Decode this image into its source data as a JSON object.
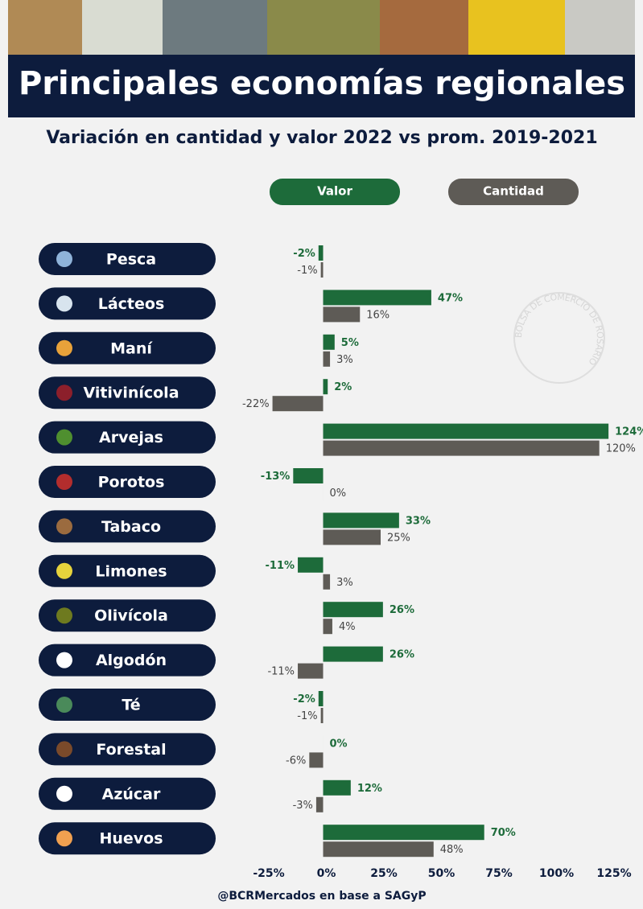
{
  "chart_data": {
    "type": "bar",
    "orientation": "horizontal",
    "title": "Principales economías regionales",
    "subtitle": "Variación en cantidad y valor 2022 vs prom. 2019-2021",
    "source": "@BCRMercados en base a SAGyP",
    "watermark": "BOLSA DE COMERCIO DE ROSARIO",
    "legend": "top",
    "categories": [
      "Pesca",
      "Lácteos",
      "Maní",
      "Vitivinícola",
      "Arvejas",
      "Porotos",
      "Tabaco",
      "Limones",
      "Olivícola",
      "Algodón",
      "Té",
      "Forestal",
      "Azúcar",
      "Huevos"
    ],
    "series": [
      {
        "name": "Valor",
        "color": "#1d6b3a",
        "values": [
          -2,
          47,
          5,
          2,
          124,
          -13,
          33,
          -11,
          26,
          26,
          -2,
          0,
          12,
          70
        ],
        "value_labels": [
          "-2%",
          "47%",
          "5%",
          "2%",
          "124%",
          "-13%",
          "33%",
          "-11%",
          "26%",
          "26%",
          "-2%",
          "0%",
          "12%",
          "70%"
        ]
      },
      {
        "name": "Cantidad",
        "color": "#5e5b56",
        "values": [
          -1,
          16,
          3,
          -22,
          120,
          0,
          25,
          3,
          4,
          -11,
          -1,
          -6,
          -3,
          48
        ],
        "value_labels": [
          "-1%",
          "16%",
          "3%",
          "-22%",
          "120%",
          "0%",
          "25%",
          "3%",
          "4%",
          "-11%",
          "-1%",
          "-6%",
          "-3%",
          "48%"
        ]
      }
    ],
    "xlim": [
      -25,
      125
    ],
    "xticks": [
      {
        "value": -25,
        "label": "-25%"
      },
      {
        "value": 0,
        "label": "0%"
      },
      {
        "value": 25,
        "label": "25%"
      },
      {
        "value": 50,
        "label": "50%"
      },
      {
        "value": 75,
        "label": "75%"
      },
      {
        "value": 100,
        "label": "100%"
      },
      {
        "value": 125,
        "label": "125%"
      }
    ],
    "grid": false
  }
}
